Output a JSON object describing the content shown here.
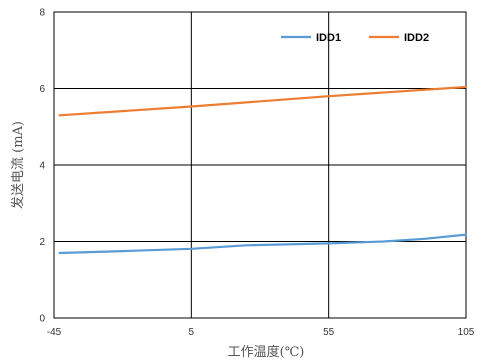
{
  "chart_data": {
    "type": "line",
    "xlabel": "工作温度(℃)",
    "ylabel": "发送电流 (mA)",
    "xlim": [
      -45,
      105
    ],
    "ylim": [
      0,
      8
    ],
    "x_ticks": [
      "-45",
      "5",
      "55",
      "105"
    ],
    "y_ticks": [
      "0",
      "2",
      "4",
      "6",
      "8"
    ],
    "grid": true,
    "legend_position": "top-right",
    "series": [
      {
        "name": "IDD1",
        "color": "#5b9bd5",
        "x": [
          -43,
          -20,
          5,
          25,
          55,
          75,
          90,
          105
        ],
        "y": [
          1.7,
          1.75,
          1.81,
          1.9,
          1.95,
          2.0,
          2.07,
          2.18
        ]
      },
      {
        "name": "IDD2",
        "color": "#ed7d31",
        "x": [
          -43,
          5,
          55,
          105
        ],
        "y": [
          5.3,
          5.53,
          5.8,
          6.04
        ]
      }
    ]
  }
}
